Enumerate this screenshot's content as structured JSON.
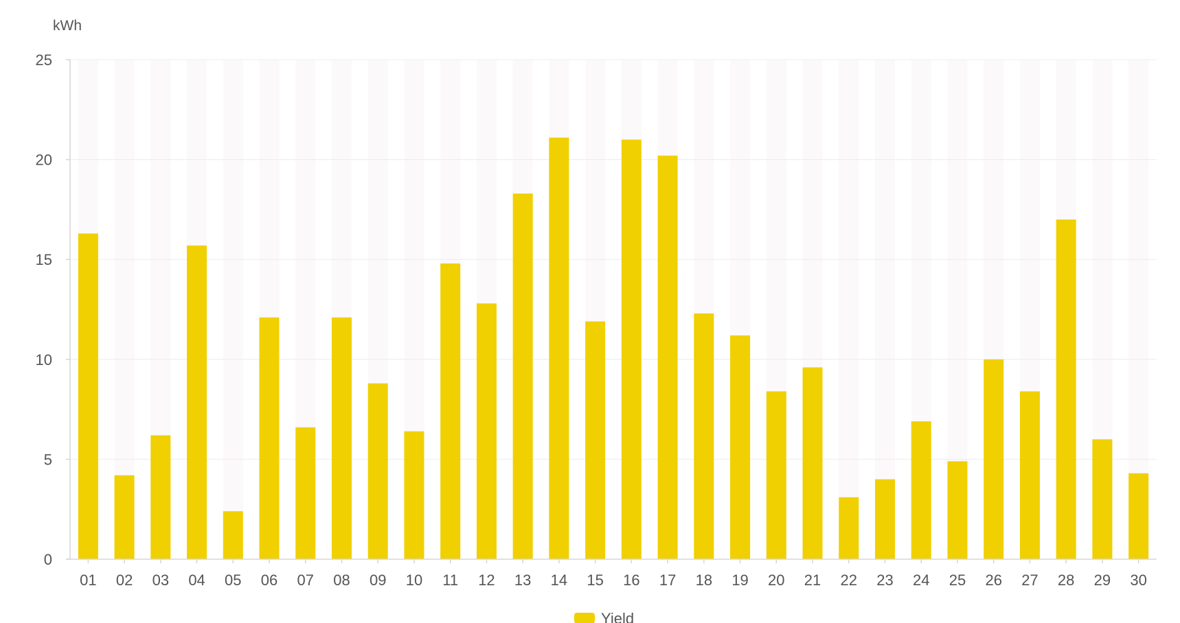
{
  "chart_data": {
    "type": "bar",
    "unit_label": "kWh",
    "categories": [
      "01",
      "02",
      "03",
      "04",
      "05",
      "06",
      "07",
      "08",
      "09",
      "10",
      "11",
      "12",
      "13",
      "14",
      "15",
      "16",
      "17",
      "18",
      "19",
      "20",
      "21",
      "22",
      "23",
      "24",
      "25",
      "26",
      "27",
      "28",
      "29",
      "30"
    ],
    "series": [
      {
        "name": "Yield",
        "color": "#F0D000",
        "values": [
          16.3,
          4.2,
          6.2,
          15.7,
          2.4,
          12.1,
          6.6,
          12.1,
          8.8,
          6.4,
          14.8,
          12.8,
          18.3,
          21.1,
          11.9,
          21.0,
          20.2,
          12.3,
          11.2,
          8.4,
          9.6,
          3.1,
          4.0,
          6.9,
          4.9,
          10.0,
          8.4,
          17.0,
          6.0,
          4.3
        ]
      }
    ],
    "ylim": [
      0,
      25
    ],
    "yticks": [
      0,
      5,
      10,
      15,
      20,
      25
    ],
    "grid": true,
    "legend_position": "bottom-center"
  }
}
